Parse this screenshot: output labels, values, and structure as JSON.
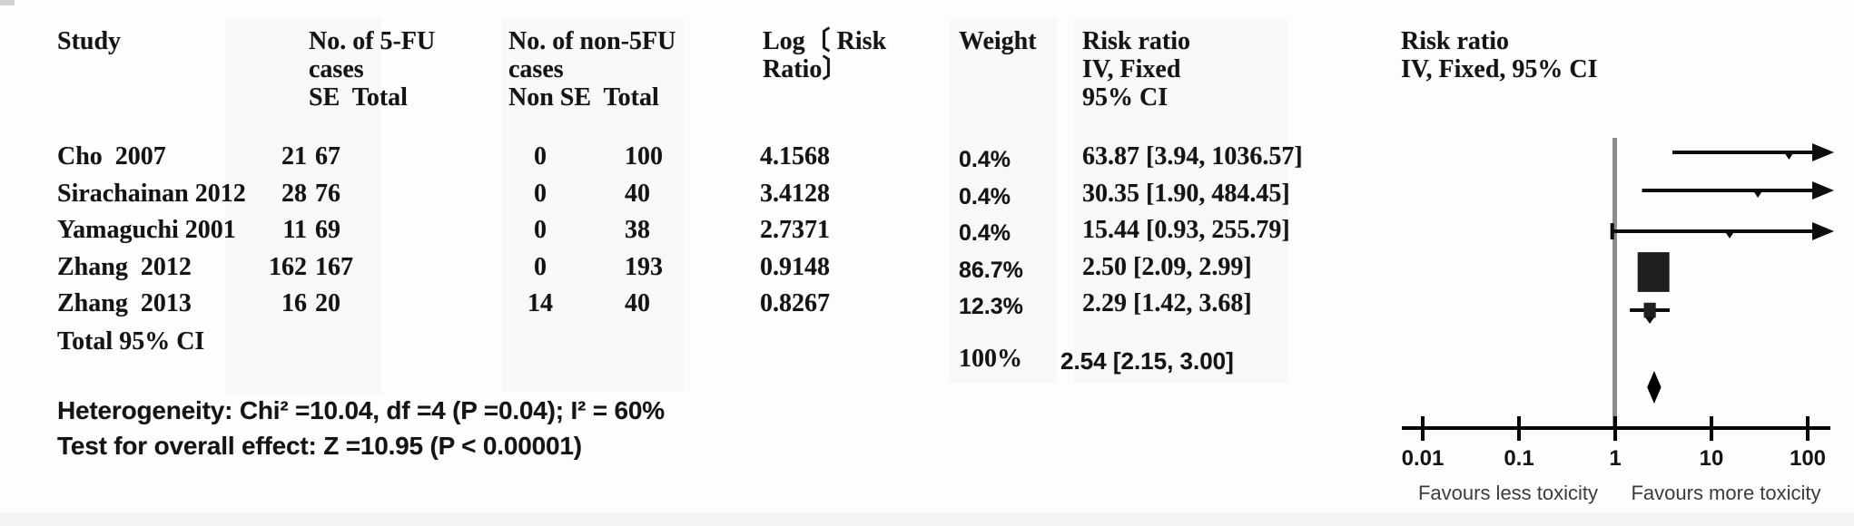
{
  "columns": {
    "study": "Study",
    "fu_cases": "No. of 5-FU\ncases\nSE  Total",
    "non_fu_cases": "No. of non-5FU\ncases\nNon SE  Total",
    "log_risk_ratio": "Log〔 Risk\nRatio〕",
    "weight": "Weight",
    "risk_ratio": "Risk ratio\nIV, Fixed\n95% CI",
    "risk_ratio_plot": "Risk ratio\nIV, Fixed, 95% CI"
  },
  "chart_data": {
    "type": "forest",
    "x_scale": "log10",
    "x_min": 0.01,
    "x_max": 100,
    "x_ticks": [
      0.01,
      0.1,
      1,
      10,
      100
    ],
    "x_axis_labels": [
      "0.01",
      "0.1",
      "1",
      "10",
      "100"
    ],
    "favours_left": "Favours less toxicity",
    "favours_right": "Favours more toxicity",
    "effect_measure": "Risk ratio",
    "model": "IV, Fixed, 95% CI",
    "studies": [
      {
        "study": "Cho  2007",
        "se": "21",
        "total": "67",
        "non_se": "0",
        "non_total": "100",
        "log_rr": "4.1568",
        "weight": "0.4%",
        "weight_pct": 0.4,
        "rr_ci": "63.87 [3.94, 1036.57]",
        "rr": 63.87,
        "ci_low": 3.94,
        "ci_high": 1036.57
      },
      {
        "study": "Sirachainan 2012",
        "se": "28",
        "total": "76",
        "non_se": "0",
        "non_total": "40",
        "log_rr": "3.4128",
        "weight": "0.4%",
        "weight_pct": 0.4,
        "rr_ci": "30.35 [1.90, 484.45]",
        "rr": 30.35,
        "ci_low": 1.9,
        "ci_high": 484.45
      },
      {
        "study": "Yamaguchi 2001",
        "se": "11",
        "total": "69",
        "non_se": "0",
        "non_total": "38",
        "log_rr": "2.7371",
        "weight": "0.4%",
        "weight_pct": 0.4,
        "rr_ci": "15.44 [0.93, 255.79]",
        "rr": 15.44,
        "ci_low": 0.93,
        "ci_high": 255.79
      },
      {
        "study": "Zhang  2012",
        "se": "162",
        "total": "167",
        "non_se": "0",
        "non_total": "193",
        "log_rr": "0.9148",
        "weight": "86.7%",
        "weight_pct": 86.7,
        "rr_ci": "2.50 [2.09, 2.99]",
        "rr": 2.5,
        "ci_low": 2.09,
        "ci_high": 2.99
      },
      {
        "study": "Zhang  2013",
        "se": "16",
        "total": "20",
        "non_se": "14",
        "non_total": "40",
        "log_rr": "0.8267",
        "weight": "12.3%",
        "weight_pct": 12.3,
        "rr_ci": "2.29 [1.42, 3.68]",
        "rr": 2.29,
        "ci_low": 1.42,
        "ci_high": 3.68
      }
    ],
    "total": {
      "label": "Total 95% CI",
      "weight": "100%",
      "rr_ci": "2.54 [2.15, 3.00]",
      "rr": 2.54,
      "ci_low": 2.15,
      "ci_high": 3.0
    }
  },
  "footnotes": {
    "heterogeneity": "Heterogeneity: Chi² =10.04, df =4 (P =0.04); I² = 60%",
    "overall_effect": "Test for overall effect: Z =10.95 (P < 0.00001)"
  }
}
